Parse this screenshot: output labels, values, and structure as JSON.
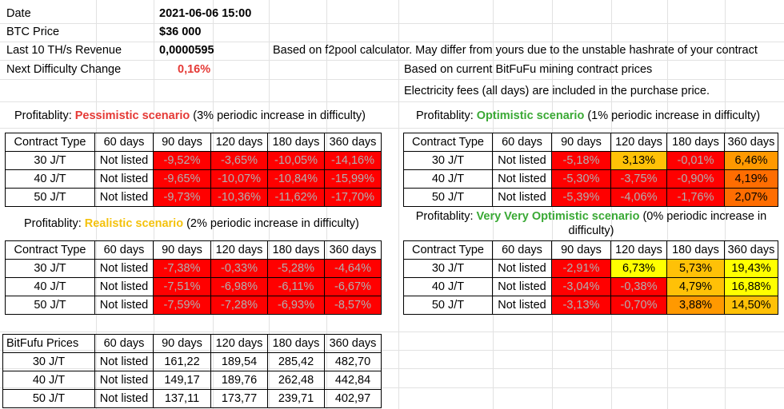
{
  "info": {
    "date_label": "Date",
    "date_value": "2021-06-06 15:00",
    "btc_label": "BTC Price",
    "btc_value": "$36 000",
    "revenue_label": "Last 10 TH/s Revenue",
    "revenue_value": "0,0000595",
    "difficulty_label": "Next Difficulty Change",
    "difficulty_value": "0,16%",
    "note_f2pool": "Based on f2pool calculator. May differ from yours due to the unstable hashrate of your contract",
    "note_prices": "Based on current BitFuFu mining contract prices",
    "note_fees": "Electricity fees (all days) are included in the purchase price."
  },
  "headers": [
    "Contract Type",
    "60 days",
    "90 days",
    "120 days",
    "180 days",
    "360 days"
  ],
  "pessimistic": {
    "title_prefix": "Profitablity: ",
    "title_name": "Pessimistic scenario",
    "title_suffix": " (3% periodic increase in difficulty)",
    "rows": [
      [
        "30 J/T",
        "Not listed",
        "-9,52%",
        "-3,65%",
        "-10,05%",
        "-14,16%"
      ],
      [
        "40 J/T",
        "Not listed",
        "-9,65%",
        "-10,07%",
        "-10,84%",
        "-15,99%"
      ],
      [
        "50 J/T",
        "Not listed",
        "-9,73%",
        "-10,36%",
        "-11,62%",
        "-17,70%"
      ]
    ]
  },
  "optimistic": {
    "title_prefix": "Profitablity: ",
    "title_name": "Optimistic scenario",
    "title_suffix": " (1% periodic increase in difficulty)",
    "rows": [
      [
        "30 J/T",
        "Not listed",
        "-5,18%",
        "3,13%",
        "-0,01%",
        "6,46%"
      ],
      [
        "40 J/T",
        "Not listed",
        "-5,30%",
        "-3,75%",
        "-0,90%",
        "4,19%"
      ],
      [
        "50 J/T",
        "Not listed",
        "-5,39%",
        "-4,06%",
        "-1,76%",
        "2,07%"
      ]
    ]
  },
  "realistic": {
    "title_prefix": "Profitablity: ",
    "title_name": "Realistic scenario",
    "title_suffix": " (2% periodic increase in difficulty)",
    "rows": [
      [
        "30 J/T",
        "Not listed",
        "-7,38%",
        "-0,33%",
        "-5,28%",
        "-4,64%"
      ],
      [
        "40 J/T",
        "Not listed",
        "-7,51%",
        "-6,98%",
        "-6,11%",
        "-6,67%"
      ],
      [
        "50 J/T",
        "Not listed",
        "-7,59%",
        "-7,28%",
        "-6,93%",
        "-8,57%"
      ]
    ]
  },
  "very_optimistic": {
    "title_prefix": "Profitablity: ",
    "title_name": "Very Very Optimistic scenario",
    "title_suffix": " (0% periodic increase in",
    "title_line2": "difficulty)",
    "rows": [
      [
        "30 J/T",
        "Not listed",
        "-2,91%",
        "6,73%",
        "5,73%",
        "19,43%"
      ],
      [
        "40 J/T",
        "Not listed",
        "-3,04%",
        "-0,38%",
        "4,79%",
        "16,88%"
      ],
      [
        "50 J/T",
        "Not listed",
        "-3,13%",
        "-0,70%",
        "3,88%",
        "14,50%"
      ]
    ]
  },
  "prices": {
    "header": [
      "BitFufu Prices",
      "60 days",
      "90 days",
      "120 days",
      "180 days",
      "360 days"
    ],
    "rows": [
      [
        "30 J/T",
        "Not listed",
        "161,22",
        "189,54",
        "285,42",
        "482,70"
      ],
      [
        "40 J/T",
        "Not listed",
        "149,17",
        "189,76",
        "262,48",
        "442,84"
      ],
      [
        "50 J/T",
        "Not listed",
        "137,11",
        "173,77",
        "239,71",
        "402,97"
      ]
    ]
  },
  "colors": {
    "negative": "#ff0000",
    "amber": "#ffc107",
    "orange": "#ff9900",
    "deep_orange": "#ff6d01",
    "yellow": "#ffff00",
    "pessimistic_title": "#e53935",
    "optimistic_title": "#3aa935",
    "realistic_title": "#f4c20d"
  }
}
